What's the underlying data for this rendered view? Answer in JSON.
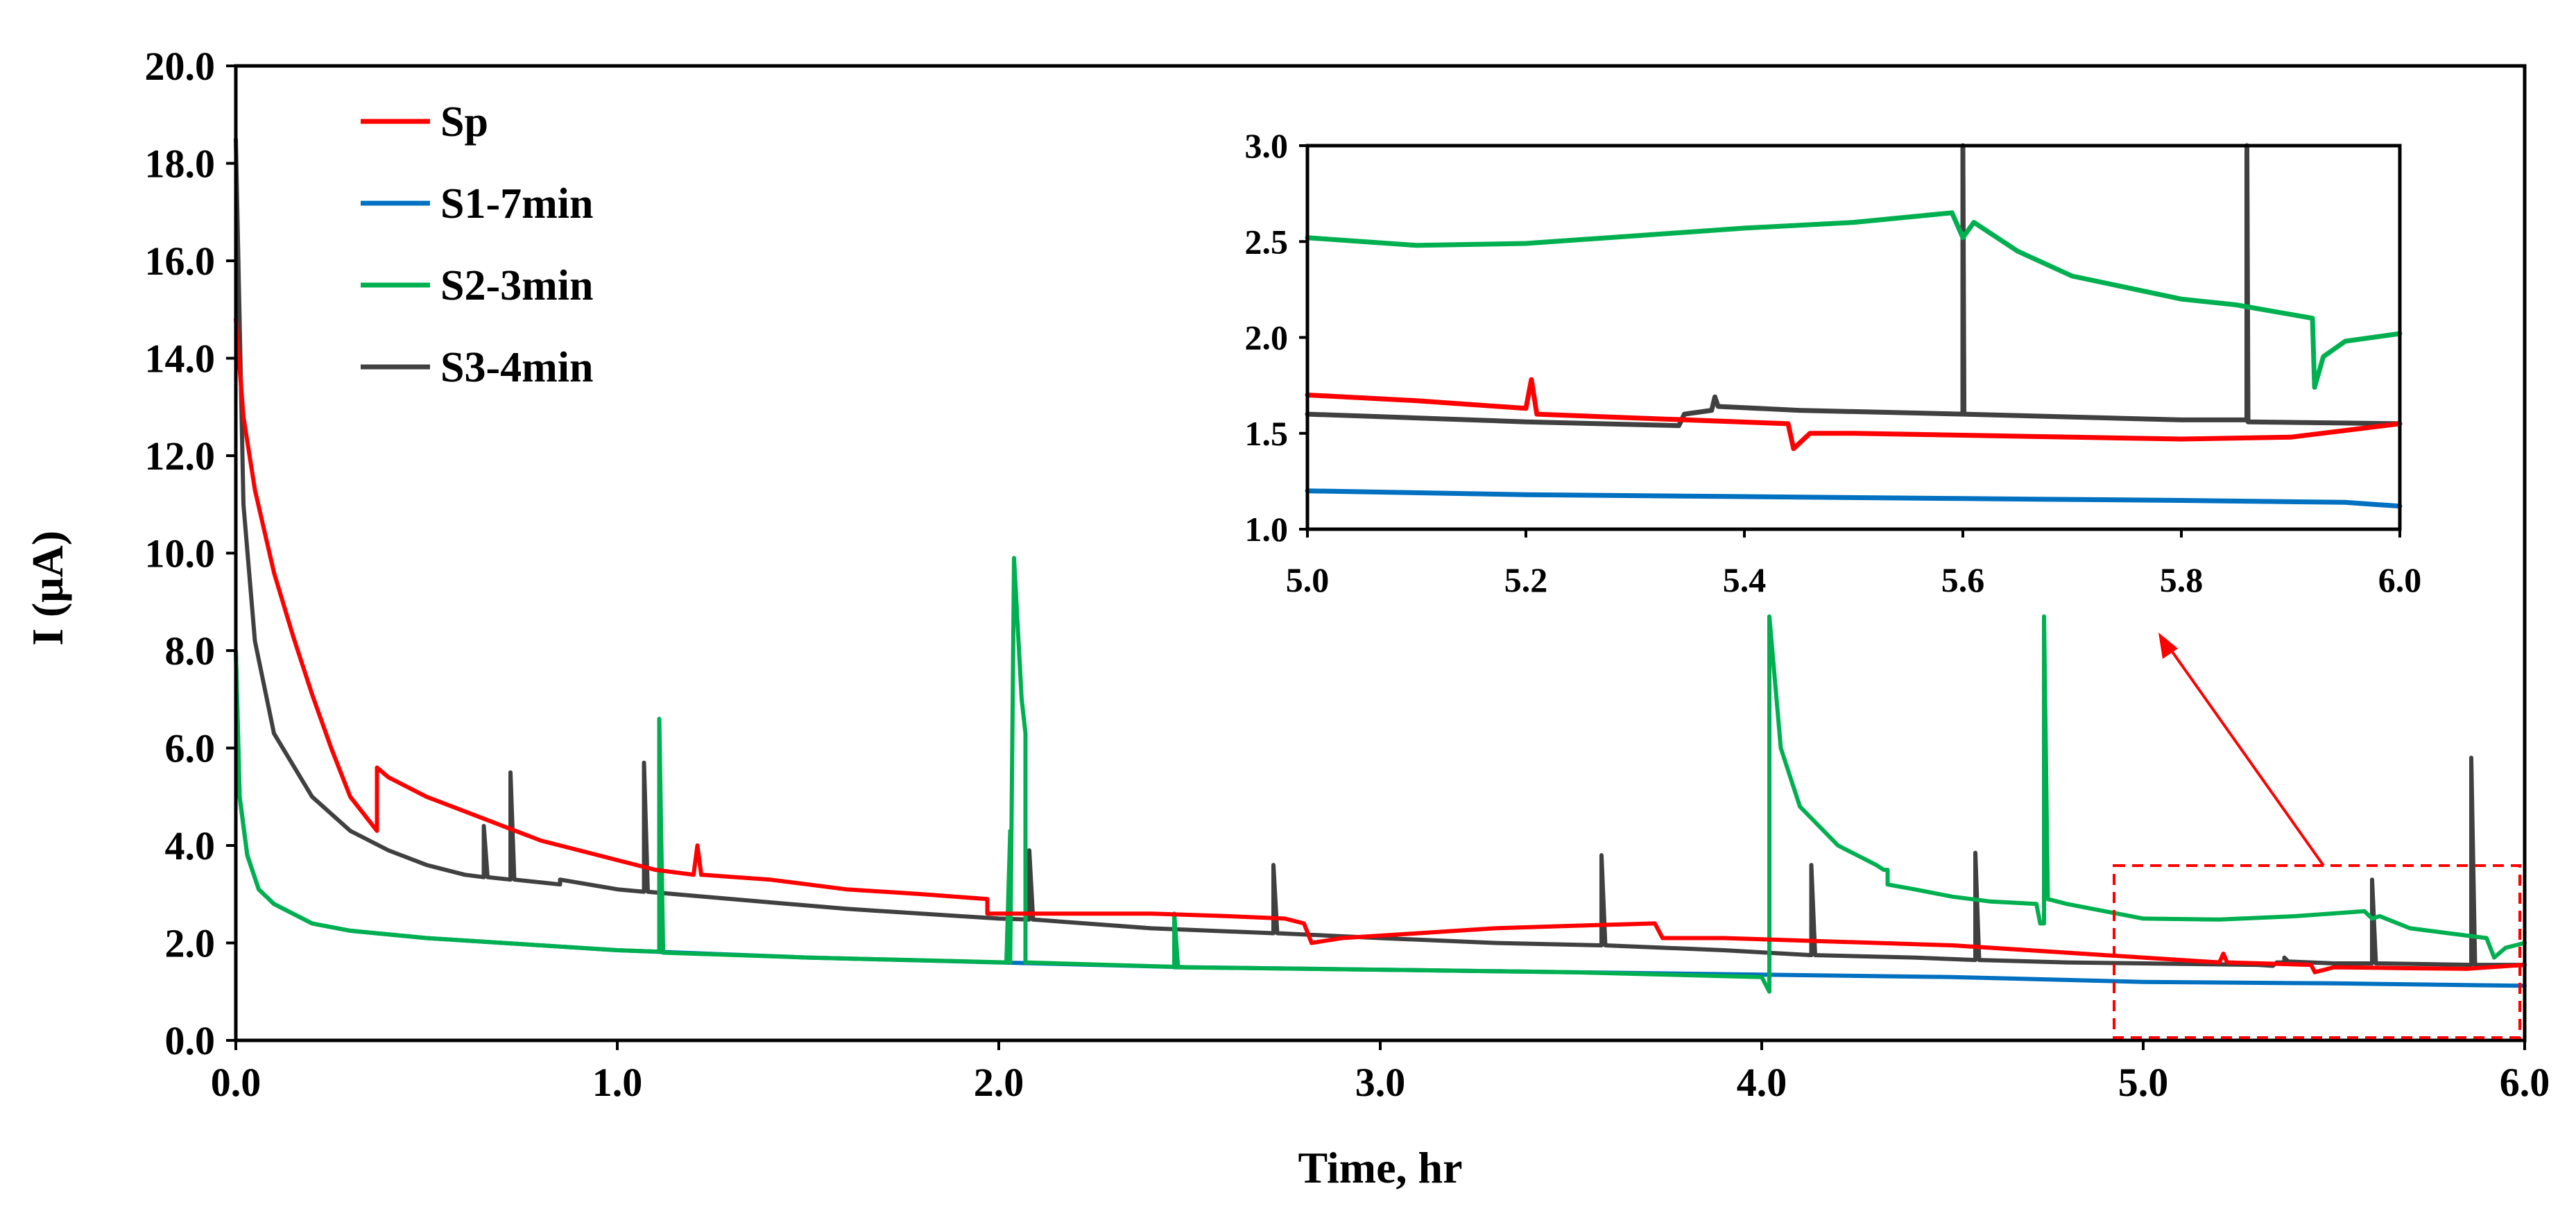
{
  "chart_data": [
    {
      "type": "line",
      "title": "",
      "xlabel": "Time, hr",
      "ylabel": "I (μA)",
      "xlim": [
        0,
        6
      ],
      "ylim": [
        0,
        20
      ],
      "xticks": [
        "0.0",
        "1.0",
        "2.0",
        "3.0",
        "4.0",
        "5.0",
        "6.0"
      ],
      "yticks": [
        "0.0",
        "2.0",
        "4.0",
        "6.0",
        "8.0",
        "10.0",
        "12.0",
        "14.0",
        "16.0",
        "18.0",
        "20.0"
      ],
      "legend_position": "top-left",
      "colors": {
        "Sp": "#ff0000",
        "S1-7min": "#0070c0",
        "S2-3min": "#00b050",
        "S3-4min": "#404040"
      },
      "series": [
        {
          "name": "Sp",
          "points": [
            [
              0.0,
              14.8
            ],
            [
              0.02,
              12.8
            ],
            [
              0.05,
              11.3
            ],
            [
              0.1,
              9.6
            ],
            [
              0.15,
              8.3
            ],
            [
              0.2,
              7.1
            ],
            [
              0.25,
              6.0
            ],
            [
              0.3,
              5.0
            ],
            [
              0.37,
              4.3
            ],
            [
              0.37,
              5.6
            ],
            [
              0.4,
              5.4
            ],
            [
              0.5,
              5.0
            ],
            [
              0.6,
              4.7
            ],
            [
              0.7,
              4.4
            ],
            [
              0.8,
              4.1
            ],
            [
              0.9,
              3.9
            ],
            [
              1.0,
              3.7
            ],
            [
              1.1,
              3.5
            ],
            [
              1.2,
              3.4
            ],
            [
              1.21,
              4.0
            ],
            [
              1.22,
              3.4
            ],
            [
              1.4,
              3.3
            ],
            [
              1.6,
              3.1
            ],
            [
              1.8,
              3.0
            ],
            [
              1.97,
              2.9
            ],
            [
              1.97,
              2.6
            ],
            [
              2.2,
              2.6
            ],
            [
              2.4,
              2.6
            ],
            [
              2.6,
              2.55
            ],
            [
              2.75,
              2.5
            ],
            [
              2.8,
              2.4
            ],
            [
              2.82,
              2.0
            ],
            [
              2.9,
              2.1
            ],
            [
              3.1,
              2.2
            ],
            [
              3.3,
              2.3
            ],
            [
              3.5,
              2.35
            ],
            [
              3.72,
              2.4
            ],
            [
              3.74,
              2.1
            ],
            [
              3.9,
              2.1
            ],
            [
              4.1,
              2.05
            ],
            [
              4.3,
              2.0
            ],
            [
              4.5,
              1.95
            ],
            [
              4.7,
              1.85
            ],
            [
              4.9,
              1.75
            ],
            [
              5.0,
              1.7
            ],
            [
              5.2,
              1.6
            ],
            [
              5.21,
              1.78
            ],
            [
              5.22,
              1.6
            ],
            [
              5.44,
              1.55
            ],
            [
              5.45,
              1.4
            ],
            [
              5.5,
              1.5
            ],
            [
              5.7,
              1.48
            ],
            [
              5.85,
              1.47
            ],
            [
              6.0,
              1.55
            ]
          ]
        },
        {
          "name": "S1-7min",
          "points": [
            [
              0.0,
              8.0
            ],
            [
              0.01,
              5.0
            ],
            [
              0.03,
              3.8
            ],
            [
              0.06,
              3.1
            ],
            [
              0.1,
              2.8
            ],
            [
              0.2,
              2.4
            ],
            [
              0.3,
              2.25
            ],
            [
              0.5,
              2.1
            ],
            [
              0.7,
              2.0
            ],
            [
              1.0,
              1.85
            ],
            [
              1.5,
              1.7
            ],
            [
              2.0,
              1.6
            ],
            [
              2.5,
              1.5
            ],
            [
              3.0,
              1.45
            ],
            [
              3.5,
              1.4
            ],
            [
              4.0,
              1.35
            ],
            [
              4.5,
              1.3
            ],
            [
              5.0,
              1.2
            ],
            [
              5.5,
              1.17
            ],
            [
              6.0,
              1.12
            ]
          ]
        },
        {
          "name": "S2-3min",
          "points": [
            [
              0.0,
              8.0
            ],
            [
              0.01,
              5.0
            ],
            [
              0.03,
              3.8
            ],
            [
              0.06,
              3.1
            ],
            [
              0.1,
              2.8
            ],
            [
              0.2,
              2.4
            ],
            [
              0.3,
              2.25
            ],
            [
              0.5,
              2.1
            ],
            [
              0.7,
              2.0
            ],
            [
              1.0,
              1.85
            ],
            [
              1.11,
              1.82
            ],
            [
              1.11,
              6.6
            ],
            [
              1.12,
              1.9
            ],
            [
              1.12,
              1.8
            ],
            [
              1.5,
              1.7
            ],
            [
              2.02,
              1.6
            ],
            [
              2.03,
              4.3
            ],
            [
              2.03,
              1.6
            ],
            [
              2.04,
              9.9
            ],
            [
              2.06,
              7.0
            ],
            [
              2.07,
              6.3
            ],
            [
              2.07,
              1.6
            ],
            [
              2.5,
              1.5
            ],
            [
              2.46,
              1.5
            ],
            [
              2.46,
              2.6
            ],
            [
              2.47,
              1.5
            ],
            [
              3.0,
              1.45
            ],
            [
              3.5,
              1.4
            ],
            [
              4.0,
              1.3
            ],
            [
              4.02,
              1.0
            ],
            [
              4.02,
              8.7
            ],
            [
              4.05,
              6.0
            ],
            [
              4.1,
              4.8
            ],
            [
              4.2,
              4.0
            ],
            [
              4.3,
              3.6
            ],
            [
              4.32,
              3.5
            ],
            [
              4.33,
              3.5
            ],
            [
              4.33,
              3.2
            ],
            [
              4.4,
              3.1
            ],
            [
              4.5,
              2.95
            ],
            [
              4.6,
              2.85
            ],
            [
              4.72,
              2.8
            ],
            [
              4.73,
              2.4
            ],
            [
              4.74,
              2.4
            ],
            [
              4.74,
              8.7
            ],
            [
              4.75,
              2.9
            ],
            [
              4.8,
              2.8
            ],
            [
              5.0,
              2.5
            ],
            [
              5.2,
              2.48
            ],
            [
              5.4,
              2.55
            ],
            [
              5.58,
              2.65
            ],
            [
              5.6,
              2.5
            ],
            [
              5.62,
              2.55
            ],
            [
              5.7,
              2.3
            ],
            [
              5.8,
              2.2
            ],
            [
              5.9,
              2.1
            ],
            [
              5.92,
              1.7
            ],
            [
              5.95,
              1.9
            ],
            [
              6.0,
              2.0
            ]
          ]
        },
        {
          "name": "S3-4min",
          "points": [
            [
              0.0,
              18.5
            ],
            [
              0.02,
              11.0
            ],
            [
              0.05,
              8.2
            ],
            [
              0.1,
              6.3
            ],
            [
              0.2,
              5.0
            ],
            [
              0.3,
              4.3
            ],
            [
              0.4,
              3.9
            ],
            [
              0.5,
              3.6
            ],
            [
              0.6,
              3.4
            ],
            [
              0.65,
              3.35
            ],
            [
              0.65,
              4.4
            ],
            [
              0.66,
              3.35
            ],
            [
              0.72,
              3.3
            ],
            [
              0.72,
              5.5
            ],
            [
              0.73,
              3.3
            ],
            [
              0.85,
              3.2
            ],
            [
              0.85,
              3.3
            ],
            [
              1.0,
              3.1
            ],
            [
              1.07,
              3.05
            ],
            [
              1.07,
              5.7
            ],
            [
              1.08,
              3.05
            ],
            [
              1.3,
              2.9
            ],
            [
              1.6,
              2.7
            ],
            [
              2.0,
              2.5
            ],
            [
              2.08,
              2.48
            ],
            [
              2.08,
              3.9
            ],
            [
              2.09,
              2.48
            ],
            [
              2.4,
              2.3
            ],
            [
              2.72,
              2.2
            ],
            [
              2.72,
              3.6
            ],
            [
              2.73,
              2.2
            ],
            [
              3.0,
              2.1
            ],
            [
              3.3,
              2.0
            ],
            [
              3.58,
              1.95
            ],
            [
              3.58,
              3.8
            ],
            [
              3.59,
              1.95
            ],
            [
              3.9,
              1.85
            ],
            [
              4.13,
              1.75
            ],
            [
              4.13,
              3.6
            ],
            [
              4.14,
              1.75
            ],
            [
              4.4,
              1.7
            ],
            [
              4.56,
              1.65
            ],
            [
              4.56,
              3.85
            ],
            [
              4.57,
              1.65
            ],
            [
              4.8,
              1.6
            ],
            [
              5.0,
              1.58
            ],
            [
              5.3,
              1.55
            ],
            [
              5.34,
              1.53
            ],
            [
              5.35,
              1.6
            ],
            [
              5.37,
              1.6
            ],
            [
              5.37,
              1.7
            ],
            [
              5.38,
              1.62
            ],
            [
              5.5,
              1.58
            ],
            [
              5.6,
              1.58
            ],
            [
              5.6,
              3.3
            ],
            [
              5.61,
              1.58
            ],
            [
              5.86,
              1.55
            ],
            [
              5.86,
              5.8
            ],
            [
              5.87,
              1.55
            ],
            [
              6.0,
              1.55
            ]
          ]
        }
      ]
    },
    {
      "type": "line",
      "title": "",
      "xlabel": "",
      "ylabel": "",
      "xlim": [
        5.0,
        6.0
      ],
      "ylim": [
        1.0,
        3.0
      ],
      "xticks": [
        "5.0",
        "5.2",
        "5.4",
        "5.6",
        "5.8",
        "6.0"
      ],
      "yticks": [
        "1.0",
        "1.5",
        "2.0",
        "2.5",
        "3.0"
      ],
      "series": [
        {
          "name": "Sp",
          "points": [
            [
              5.0,
              1.7
            ],
            [
              5.1,
              1.67
            ],
            [
              5.2,
              1.63
            ],
            [
              5.205,
              1.78
            ],
            [
              5.21,
              1.6
            ],
            [
              5.3,
              1.58
            ],
            [
              5.44,
              1.55
            ],
            [
              5.445,
              1.42
            ],
            [
              5.46,
              1.5
            ],
            [
              5.5,
              1.5
            ],
            [
              5.6,
              1.49
            ],
            [
              5.7,
              1.48
            ],
            [
              5.8,
              1.47
            ],
            [
              5.9,
              1.48
            ],
            [
              6.0,
              1.55
            ]
          ]
        },
        {
          "name": "S1-7min",
          "points": [
            [
              5.0,
              1.2
            ],
            [
              5.2,
              1.18
            ],
            [
              5.4,
              1.17
            ],
            [
              5.6,
              1.16
            ],
            [
              5.8,
              1.15
            ],
            [
              5.95,
              1.14
            ],
            [
              6.0,
              1.12
            ]
          ]
        },
        {
          "name": "S2-3min",
          "points": [
            [
              5.0,
              2.52
            ],
            [
              5.1,
              2.48
            ],
            [
              5.2,
              2.49
            ],
            [
              5.3,
              2.53
            ],
            [
              5.4,
              2.57
            ],
            [
              5.5,
              2.6
            ],
            [
              5.59,
              2.65
            ],
            [
              5.6,
              2.52
            ],
            [
              5.61,
              2.6
            ],
            [
              5.65,
              2.45
            ],
            [
              5.7,
              2.32
            ],
            [
              5.8,
              2.2
            ],
            [
              5.85,
              2.17
            ],
            [
              5.92,
              2.1
            ],
            [
              5.922,
              1.74
            ],
            [
              5.93,
              1.9
            ],
            [
              5.95,
              1.98
            ],
            [
              6.0,
              2.02
            ]
          ]
        },
        {
          "name": "S3-4min",
          "points": [
            [
              5.0,
              1.6
            ],
            [
              5.1,
              1.58
            ],
            [
              5.2,
              1.56
            ],
            [
              5.34,
              1.54
            ],
            [
              5.345,
              1.6
            ],
            [
              5.37,
              1.62
            ],
            [
              5.373,
              1.69
            ],
            [
              5.376,
              1.64
            ],
            [
              5.45,
              1.62
            ],
            [
              5.6,
              1.6
            ],
            [
              5.6,
              3.0
            ],
            [
              5.601,
              1.6
            ],
            [
              5.8,
              1.57
            ],
            [
              5.86,
              1.57
            ],
            [
              5.86,
              3.0
            ],
            [
              5.861,
              1.56
            ],
            [
              6.0,
              1.55
            ]
          ]
        }
      ]
    }
  ]
}
